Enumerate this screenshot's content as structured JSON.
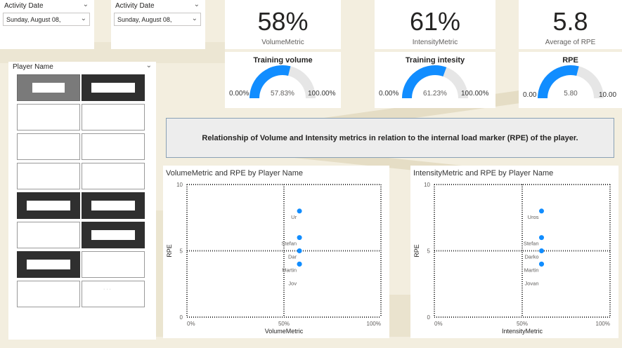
{
  "slicers": [
    {
      "title": "Activity Date",
      "value": "Sunday, August 08,"
    },
    {
      "title": "Activity Date",
      "value": "Sunday, August 08,"
    }
  ],
  "kpis": [
    {
      "value": "58%",
      "label": "VolumeMetric"
    },
    {
      "value": "61%",
      "label": "IntensityMetric"
    },
    {
      "value": "5.8",
      "label": "Average of RPE"
    }
  ],
  "gauges": [
    {
      "title": "Training volume",
      "min": "0.00%",
      "max": "100.00%",
      "current": "57.83%",
      "fraction": 0.5783
    },
    {
      "title": "Training intesity",
      "min": "0.00%",
      "max": "100.00%",
      "current": "61.23%",
      "fraction": 0.6123
    },
    {
      "title": "RPE",
      "min": "0.00",
      "max": "10.00",
      "current": "5.80",
      "fraction": 0.58
    }
  ],
  "player_slicer": {
    "title": "Player Name",
    "tiles": [
      {
        "style": "mid",
        "redacted": true,
        "label": ""
      },
      {
        "style": "dark",
        "redacted": true,
        "label": ""
      },
      {
        "style": "light",
        "redacted": false,
        "label": ""
      },
      {
        "style": "light",
        "redacted": false,
        "label": ""
      },
      {
        "style": "light",
        "redacted": false,
        "label": ""
      },
      {
        "style": "light",
        "redacted": false,
        "label": ""
      },
      {
        "style": "light",
        "redacted": false,
        "label": ""
      },
      {
        "style": "light",
        "redacted": false,
        "label": ""
      },
      {
        "style": "dark",
        "redacted": true,
        "label": ""
      },
      {
        "style": "dark",
        "redacted": true,
        "label": ""
      },
      {
        "style": "light",
        "redacted": false,
        "label": ""
      },
      {
        "style": "dark",
        "redacted": true,
        "label": ""
      },
      {
        "style": "dark",
        "redacted": true,
        "label": ""
      },
      {
        "style": "light",
        "redacted": false,
        "label": ""
      },
      {
        "style": "light",
        "redacted": false,
        "label": ""
      },
      {
        "style": "light",
        "redacted": false,
        "label": "· · ·"
      }
    ]
  },
  "banner": "Relationship of Volume and Intensity metrics in relation to the internal load marker (RPE) of the player.",
  "colors": {
    "accent": "#118dff",
    "gauge_track": "#e6e6e6",
    "dark_tile": "#2f2f2f"
  },
  "chart_data": [
    {
      "type": "scatter",
      "title": "VolumeMetric and RPE by Player Name",
      "xlabel": "VolumeMetric",
      "ylabel": "RPE",
      "xlim": [
        0,
        100
      ],
      "ylim": [
        0,
        10
      ],
      "x_ticks": [
        "0%",
        "50%",
        "100%"
      ],
      "y_ticks": [
        "0",
        "5",
        "10"
      ],
      "points": [
        {
          "label": "Ur",
          "x": 58,
          "y": 8
        },
        {
          "label": "Stefan",
          "x": 58,
          "y": 6
        },
        {
          "label": "Dar",
          "x": 58,
          "y": 5
        },
        {
          "label": "Martin",
          "x": 58,
          "y": 4
        },
        {
          "label": "Jov",
          "x": 58,
          "y": 4
        }
      ]
    },
    {
      "type": "scatter",
      "title": "IntensityMetric and RPE by Player Name",
      "xlabel": "IntensityMetric",
      "ylabel": "RPE",
      "xlim": [
        0,
        100
      ],
      "ylim": [
        0,
        10
      ],
      "x_ticks": [
        "0%",
        "50%",
        "100%"
      ],
      "y_ticks": [
        "0",
        "5",
        "10"
      ],
      "points": [
        {
          "label": "Uros",
          "x": 61,
          "y": 8
        },
        {
          "label": "Stefan",
          "x": 61,
          "y": 6
        },
        {
          "label": "Darko",
          "x": 61,
          "y": 5
        },
        {
          "label": "Martin",
          "x": 61,
          "y": 4
        },
        {
          "label": "Jovan",
          "x": 61,
          "y": 4
        }
      ]
    }
  ]
}
